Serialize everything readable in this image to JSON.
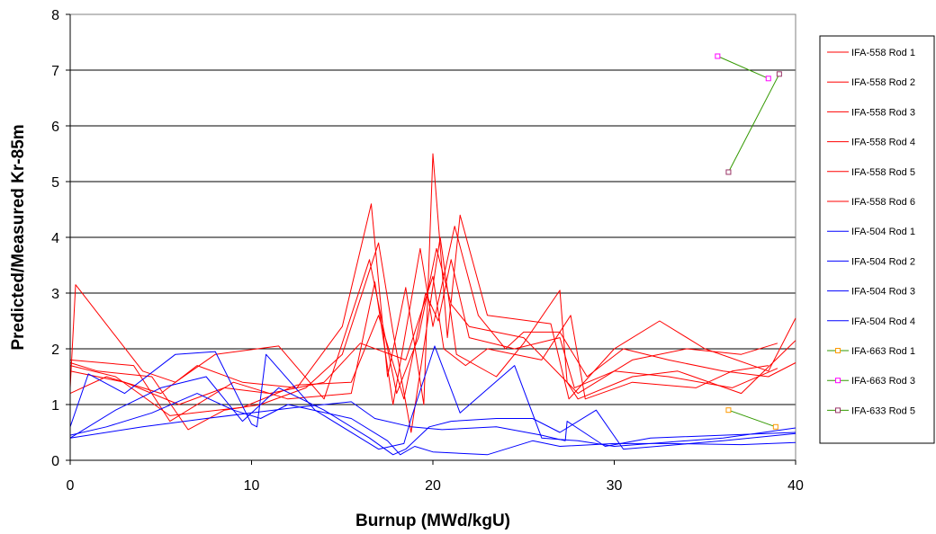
{
  "chart_data": {
    "type": "line",
    "title": "",
    "xlabel": "Burnup (MWd/kgU)",
    "ylabel": "Predicted/Measured Kr-85m",
    "xlim": [
      0,
      40
    ],
    "ylim": [
      0,
      8
    ],
    "x_ticks": [
      "0",
      "10",
      "20",
      "30",
      "40"
    ],
    "y_ticks": [
      "0",
      "1",
      "2",
      "3",
      "4",
      "5",
      "6",
      "7",
      "8"
    ],
    "grid": "horizontal",
    "legend_position": "right",
    "series": [
      {
        "name": "IFA-558 Rod 1",
        "color": "#ff0000",
        "marker": "none",
        "x": [
          0,
          0.3,
          4.0,
          5.8,
          8.0,
          11.5,
          14.0,
          16.5,
          18.0,
          19.2,
          20.2,
          21.0,
          22.0,
          25.0,
          28.0,
          31.0,
          34.0,
          37.0,
          39.0
        ],
        "y": [
          1.3,
          3.15,
          1.6,
          1.4,
          1.9,
          2.05,
          1.1,
          3.6,
          1.2,
          2.2,
          3.8,
          2.8,
          2.4,
          2.2,
          1.2,
          1.8,
          2.0,
          1.9,
          2.1
        ]
      },
      {
        "name": "IFA-558 Rod 2",
        "color": "#ff0000",
        "marker": "none",
        "x": [
          0,
          2.0,
          5.0,
          7.0,
          9.5,
          12.5,
          15.0,
          16.6,
          17.5,
          18.5,
          19.5,
          20.0,
          20.8,
          21.5,
          23.0,
          26.5,
          27.5,
          30.0,
          32.5,
          35.0,
          38.5,
          40.0
        ],
        "y": [
          1.2,
          1.5,
          1.2,
          1.7,
          1.4,
          1.3,
          2.4,
          4.6,
          1.5,
          3.1,
          1.0,
          5.5,
          2.2,
          4.4,
          2.6,
          2.45,
          1.1,
          2.0,
          2.5,
          2.0,
          1.6,
          2.55
        ]
      },
      {
        "name": "IFA-558 Rod 3",
        "color": "#ff0000",
        "marker": "none",
        "x": [
          0,
          3.5,
          5.5,
          9.0,
          12.0,
          15.5,
          16.8,
          17.8,
          19.3,
          20.0,
          21.2,
          22.5,
          24.0,
          25.0,
          27.0,
          28.5,
          30.5,
          33.0,
          36.0,
          38.5,
          40.0
        ],
        "y": [
          1.8,
          1.7,
          0.7,
          1.4,
          1.1,
          1.2,
          3.2,
          1.0,
          3.8,
          2.4,
          4.2,
          2.6,
          2.0,
          2.3,
          2.3,
          1.5,
          2.0,
          1.8,
          1.6,
          1.5,
          1.75
        ]
      },
      {
        "name": "IFA-558 Rod 4",
        "color": "#ff0000",
        "marker": "none",
        "x": [
          0,
          1.5,
          4.5,
          6.5,
          8.5,
          10.5,
          13.0,
          15.0,
          17.0,
          17.8,
          18.8,
          20.4,
          21.3,
          23.5,
          25.0,
          27.0,
          27.4,
          28.0,
          31.0,
          33.5,
          37.0,
          40.0
        ],
        "y": [
          1.75,
          1.6,
          1.5,
          0.55,
          0.9,
          1.0,
          1.3,
          1.9,
          3.9,
          2.3,
          0.5,
          4.0,
          1.9,
          1.5,
          2.1,
          3.05,
          1.4,
          1.1,
          1.5,
          1.6,
          1.2,
          2.15
        ]
      },
      {
        "name": "IFA-558 Rod 5",
        "color": "#ff0000",
        "marker": "none",
        "x": [
          0,
          3.0,
          6.0,
          8.5,
          11.0,
          14.0,
          16.0,
          18.5,
          20.0,
          20.6,
          21.8,
          23.0,
          26.0,
          27.6,
          28.4,
          31.0,
          34.5,
          36.5,
          38.5
        ],
        "y": [
          1.6,
          1.4,
          1.0,
          1.3,
          1.2,
          1.4,
          2.1,
          1.8,
          3.3,
          2.0,
          1.7,
          2.0,
          1.8,
          2.6,
          1.1,
          1.4,
          1.3,
          1.6,
          1.7
        ]
      },
      {
        "name": "IFA-558 Rod 6",
        "color": "#ff0000",
        "marker": "none",
        "x": [
          0,
          2.5,
          5.5,
          9.5,
          12.5,
          15.5,
          17.0,
          18.4,
          19.6,
          20.3,
          21.0,
          22.0,
          24.5,
          27.0,
          27.8,
          30.0,
          33.0,
          36.5,
          39.0
        ],
        "y": [
          1.7,
          1.5,
          0.8,
          0.95,
          1.35,
          1.4,
          2.6,
          1.1,
          3.0,
          2.5,
          3.6,
          2.2,
          2.0,
          2.2,
          1.3,
          1.6,
          1.5,
          1.3,
          1.65
        ]
      },
      {
        "name": "IFA-504 Rod 1",
        "color": "#0000ff",
        "marker": "none",
        "x": [
          0,
          1.0,
          3.0,
          5.8,
          8.0,
          10.0,
          10.3,
          10.8,
          13.5,
          16.0,
          17.0,
          18.4,
          18.8,
          20.1,
          21.5,
          24.5,
          26.0,
          28.0,
          30.0,
          36.0,
          40.0
        ],
        "y": [
          0.6,
          1.55,
          1.2,
          1.9,
          1.95,
          0.65,
          0.6,
          1.9,
          0.9,
          0.4,
          0.2,
          0.3,
          0.75,
          2.05,
          0.85,
          1.7,
          0.4,
          0.35,
          0.25,
          0.4,
          0.58
        ]
      },
      {
        "name": "IFA-504 Rod 2",
        "color": "#0000ff",
        "marker": "none",
        "x": [
          0,
          2.5,
          5.0,
          7.5,
          9.5,
          11.5,
          14.0,
          16.5,
          17.8,
          18.5,
          19.8,
          21.0,
          23.5,
          25.5,
          27.0,
          29.0,
          30.5,
          36.0,
          40.0
        ],
        "y": [
          0.4,
          0.9,
          1.3,
          1.5,
          0.7,
          1.3,
          0.9,
          0.4,
          0.1,
          0.2,
          0.6,
          0.7,
          0.75,
          0.75,
          0.5,
          0.9,
          0.2,
          0.35,
          0.48
        ]
      },
      {
        "name": "IFA-504 Rod 3",
        "color": "#0000ff",
        "marker": "none",
        "x": [
          0,
          2.0,
          4.5,
          7.0,
          9.0,
          10.5,
          12.0,
          15.5,
          17.5,
          18.2,
          19.0,
          20.0,
          23.0,
          25.5,
          27.0,
          30.0,
          33.0,
          37.0,
          40.0
        ],
        "y": [
          0.45,
          0.6,
          0.85,
          1.2,
          0.9,
          0.75,
          1.0,
          0.75,
          0.35,
          0.1,
          0.25,
          0.15,
          0.1,
          0.35,
          0.25,
          0.3,
          0.3,
          0.28,
          0.32
        ]
      },
      {
        "name": "IFA-504 Rod 4",
        "color": "#0000ff",
        "marker": "none",
        "x": [
          0,
          4.0,
          7.5,
          10.0,
          12.5,
          15.5,
          16.8,
          18.8,
          20.5,
          23.5,
          26.0,
          27.3,
          27.4,
          29.5,
          32.0,
          36.0,
          40.0
        ],
        "y": [
          0.4,
          0.6,
          0.75,
          0.85,
          0.95,
          1.05,
          0.75,
          0.6,
          0.55,
          0.6,
          0.45,
          0.35,
          0.7,
          0.25,
          0.4,
          0.45,
          0.5
        ]
      },
      {
        "name": "IFA-663 Rod 1",
        "color": "#339900",
        "marker": "square",
        "marker_color": "#ff9900",
        "x": [
          36.3,
          38.9
        ],
        "y": [
          0.9,
          0.6
        ]
      },
      {
        "name": "IFA-663 Rod 3",
        "color": "#339900",
        "marker": "square",
        "marker_color": "#ff00ff",
        "x": [
          35.7,
          38.5
        ],
        "y": [
          7.25,
          6.85
        ]
      },
      {
        "name": "IFA-633 Rod 5",
        "color": "#339900",
        "marker": "square",
        "marker_color": "#993366",
        "x": [
          36.3,
          39.1
        ],
        "y": [
          5.17,
          6.93
        ]
      }
    ]
  }
}
